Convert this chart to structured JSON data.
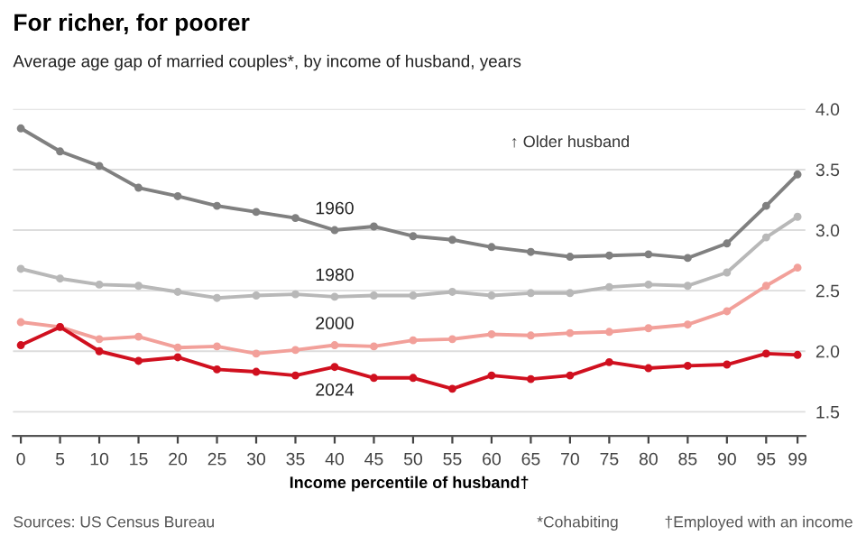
{
  "chart_data": {
    "type": "line",
    "title": "For richer, for poorer",
    "subtitle": "Average age gap of married couples*, by income of husband, years",
    "xlabel": "Income percentile of husband†",
    "x": [
      0,
      5,
      10,
      15,
      20,
      25,
      30,
      35,
      40,
      45,
      50,
      55,
      60,
      65,
      70,
      75,
      80,
      85,
      90,
      95,
      99
    ],
    "series": [
      {
        "name": "1960",
        "color": "#808080",
        "values": [
          3.84,
          3.65,
          3.53,
          3.35,
          3.28,
          3.2,
          3.15,
          3.1,
          3.0,
          3.03,
          2.95,
          2.92,
          2.86,
          2.82,
          2.78,
          2.79,
          2.8,
          2.77,
          2.89,
          3.2,
          3.46
        ]
      },
      {
        "name": "1980",
        "color": "#b8b8b8",
        "values": [
          2.68,
          2.6,
          2.55,
          2.54,
          2.49,
          2.44,
          2.46,
          2.47,
          2.45,
          2.46,
          2.46,
          2.49,
          2.46,
          2.48,
          2.48,
          2.53,
          2.55,
          2.54,
          2.65,
          2.94,
          3.11
        ]
      },
      {
        "name": "2000",
        "color": "#f2a09a",
        "values": [
          2.24,
          2.2,
          2.1,
          2.12,
          2.03,
          2.04,
          1.98,
          2.01,
          2.05,
          2.04,
          2.09,
          2.1,
          2.14,
          2.13,
          2.15,
          2.16,
          2.19,
          2.22,
          2.33,
          2.54,
          2.69
        ]
      },
      {
        "name": "2024",
        "color": "#d0101f",
        "values": [
          2.05,
          2.2,
          2.0,
          1.92,
          1.95,
          1.85,
          1.83,
          1.8,
          1.87,
          1.78,
          1.78,
          1.69,
          1.8,
          1.77,
          1.8,
          1.91,
          1.86,
          1.88,
          1.89,
          1.98,
          1.97
        ]
      }
    ],
    "xlim": [
      -1,
      100
    ],
    "ylim": [
      1.3,
      4.0
    ],
    "xticks": [
      0,
      5,
      10,
      15,
      20,
      25,
      30,
      35,
      40,
      45,
      50,
      55,
      60,
      65,
      70,
      75,
      80,
      85,
      90,
      95,
      99
    ],
    "yticks": [
      {
        "value": 1.5,
        "label": "1.5"
      },
      {
        "value": 2.0,
        "label": "2.0"
      },
      {
        "value": 2.5,
        "label": "2.5"
      },
      {
        "value": 3.0,
        "label": "3.0"
      },
      {
        "value": 3.5,
        "label": "3.5"
      },
      {
        "value": 4.0,
        "label": "4.0"
      }
    ],
    "grid": "y",
    "marker": "circle",
    "line_style": "solid",
    "legend": false,
    "annotations": [
      "↑ Older husband",
      "Sources: US Census Bureau",
      "*Cohabiting",
      "†Employed with an income"
    ]
  }
}
